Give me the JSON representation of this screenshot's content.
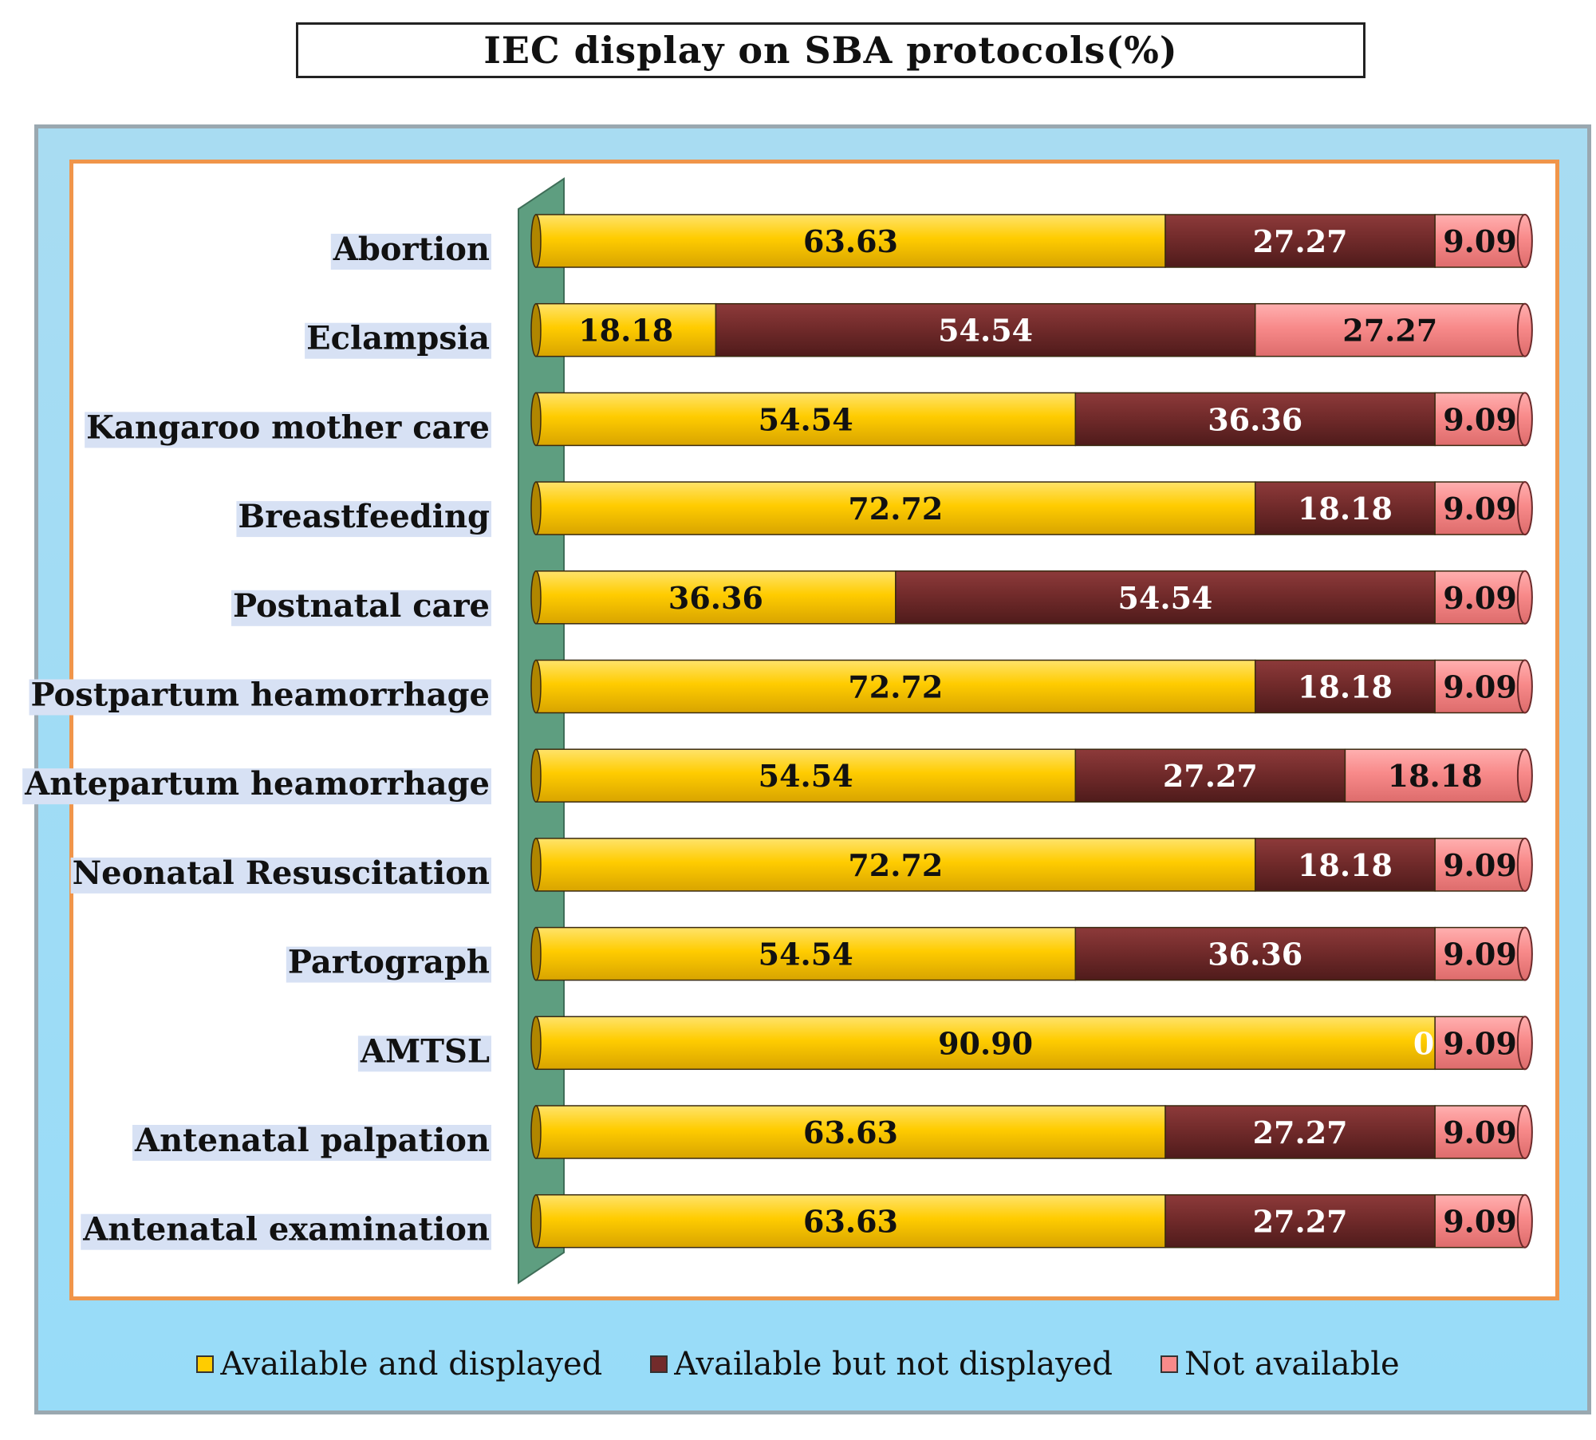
{
  "chart_data": {
    "type": "bar",
    "orientation": "horizontal",
    "stacked": true,
    "title": "IEC display on  SBA protocols(%)",
    "categories": [
      "Abortion",
      "Eclampsia",
      "Kangaroo mother care",
      "Breastfeeding",
      "Postnatal care",
      "Postpartum heamorrhage",
      "Antepartum heamorrhage",
      "Neonatal Resuscitation",
      "Partograph",
      "AMTSL",
      "Antenatal palpation",
      "Antenatal examination"
    ],
    "series": [
      {
        "name": "Available and displayed",
        "color": "#ffcc00",
        "text_color": "#111111",
        "values": [
          63.63,
          18.18,
          54.54,
          72.72,
          36.36,
          72.72,
          54.54,
          72.72,
          54.54,
          90.9,
          63.63,
          63.63
        ],
        "labels": [
          "63.63",
          "18.18",
          "54.54",
          "72.72",
          "36.36",
          "72.72",
          "54.54",
          "72.72",
          "54.54",
          "90.90",
          "63.63",
          "63.63"
        ]
      },
      {
        "name": "Available but not displayed",
        "color": "#722b2b",
        "text_color": "#ffffff",
        "values": [
          27.27,
          54.54,
          36.36,
          18.18,
          54.54,
          18.18,
          27.27,
          18.18,
          36.36,
          0,
          27.27,
          27.27
        ],
        "labels": [
          "27.27",
          "54.54",
          "36.36",
          "18.18",
          "54.54",
          "18.18",
          "27.27",
          "18.18",
          "36.36",
          "0",
          "27.27",
          "27.27"
        ]
      },
      {
        "name": "Not available",
        "color": "#f88a8a",
        "text_color": "#111111",
        "values": [
          9.09,
          27.27,
          9.09,
          9.09,
          9.09,
          9.09,
          18.18,
          9.09,
          9.09,
          9.09,
          9.09,
          9.09
        ],
        "labels": [
          "9.09",
          "27.27",
          "9.09",
          "9.09",
          "9.09",
          "9.09",
          "18.18",
          "9.09",
          "9.09",
          "9.09",
          "9.09",
          "9.09"
        ]
      }
    ],
    "xlim": [
      0,
      100
    ],
    "grid": false,
    "legend_position": "bottom",
    "colors": {
      "chart_area_background": "#a8dcf2",
      "plot_border": "#f0954a",
      "axis_wall": "#5e9e80",
      "label_highlight": "#d7e1f4"
    }
  }
}
